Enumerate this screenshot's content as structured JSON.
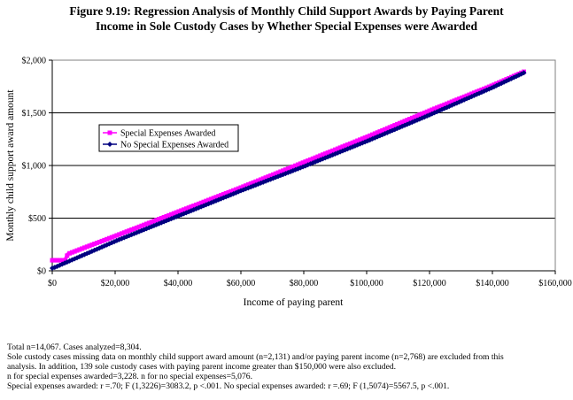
{
  "title_lines": [
    "Figure 9.19:  Regression Analysis of Monthly Child Support Awards by Paying Parent",
    "Income in Sole Custody Cases by Whether Special Expenses were Awarded"
  ],
  "notes": {
    "line1": "Total n=14,067.  Cases analyzed=8,304.",
    "line2": "Sole custody cases missing data on monthly child support award amount (n=2,131) and/or paying parent income (n=2,768) are excluded from this",
    "line3": "analysis.  In addition, 139 sole custody cases with paying parent income greater than $150,000 were also excluded.",
    "line4": "n for special expenses awarded=3,228.  n for no special expenses=5,076.",
    "line5": "Special expenses awarded:  r =.70; F (1,3226)=3083.2, p <.001.  No special expenses awarded:  r =.69; F (1,5074)=5567.5, p <.001."
  },
  "colors": {
    "special": "#ff00ff",
    "no_special": "#000080",
    "grid": "#000000",
    "plot_border": "#808080"
  },
  "chart_data": {
    "type": "line",
    "xlabel": "Income of paying parent",
    "ylabel": "Monthly child support award amount",
    "xlim": [
      0,
      160000
    ],
    "ylim": [
      0,
      2000
    ],
    "x_ticks": [
      0,
      20000,
      40000,
      60000,
      80000,
      100000,
      120000,
      140000,
      160000
    ],
    "x_tick_labels": [
      "$0",
      "$20,000",
      "$40,000",
      "$60,000",
      "$80,000",
      "$100,000",
      "$120,000",
      "$140,000",
      "$160,000"
    ],
    "y_ticks": [
      0,
      500,
      1000,
      1500,
      2000
    ],
    "y_tick_labels": [
      "$0",
      "$500",
      "$1,000",
      "$1,500",
      "$2,000"
    ],
    "grid": "horizontal",
    "legend_position": "left-middle",
    "series": [
      {
        "name": "Special Expenses Awarded",
        "marker": "square",
        "x": [
          0,
          4000,
          5000,
          20000,
          40000,
          60000,
          80000,
          100000,
          120000,
          140000,
          150000
        ],
        "y": [
          100,
          100,
          160,
          330,
          560,
          790,
          1030,
          1270,
          1520,
          1760,
          1890
        ]
      },
      {
        "name": "No Special Expenses Awarded",
        "marker": "diamond",
        "x": [
          0,
          1000,
          20000,
          40000,
          60000,
          80000,
          100000,
          120000,
          140000,
          150000
        ],
        "y": [
          25,
          35,
          280,
          520,
          760,
          990,
          1230,
          1480,
          1740,
          1880
        ]
      }
    ]
  }
}
